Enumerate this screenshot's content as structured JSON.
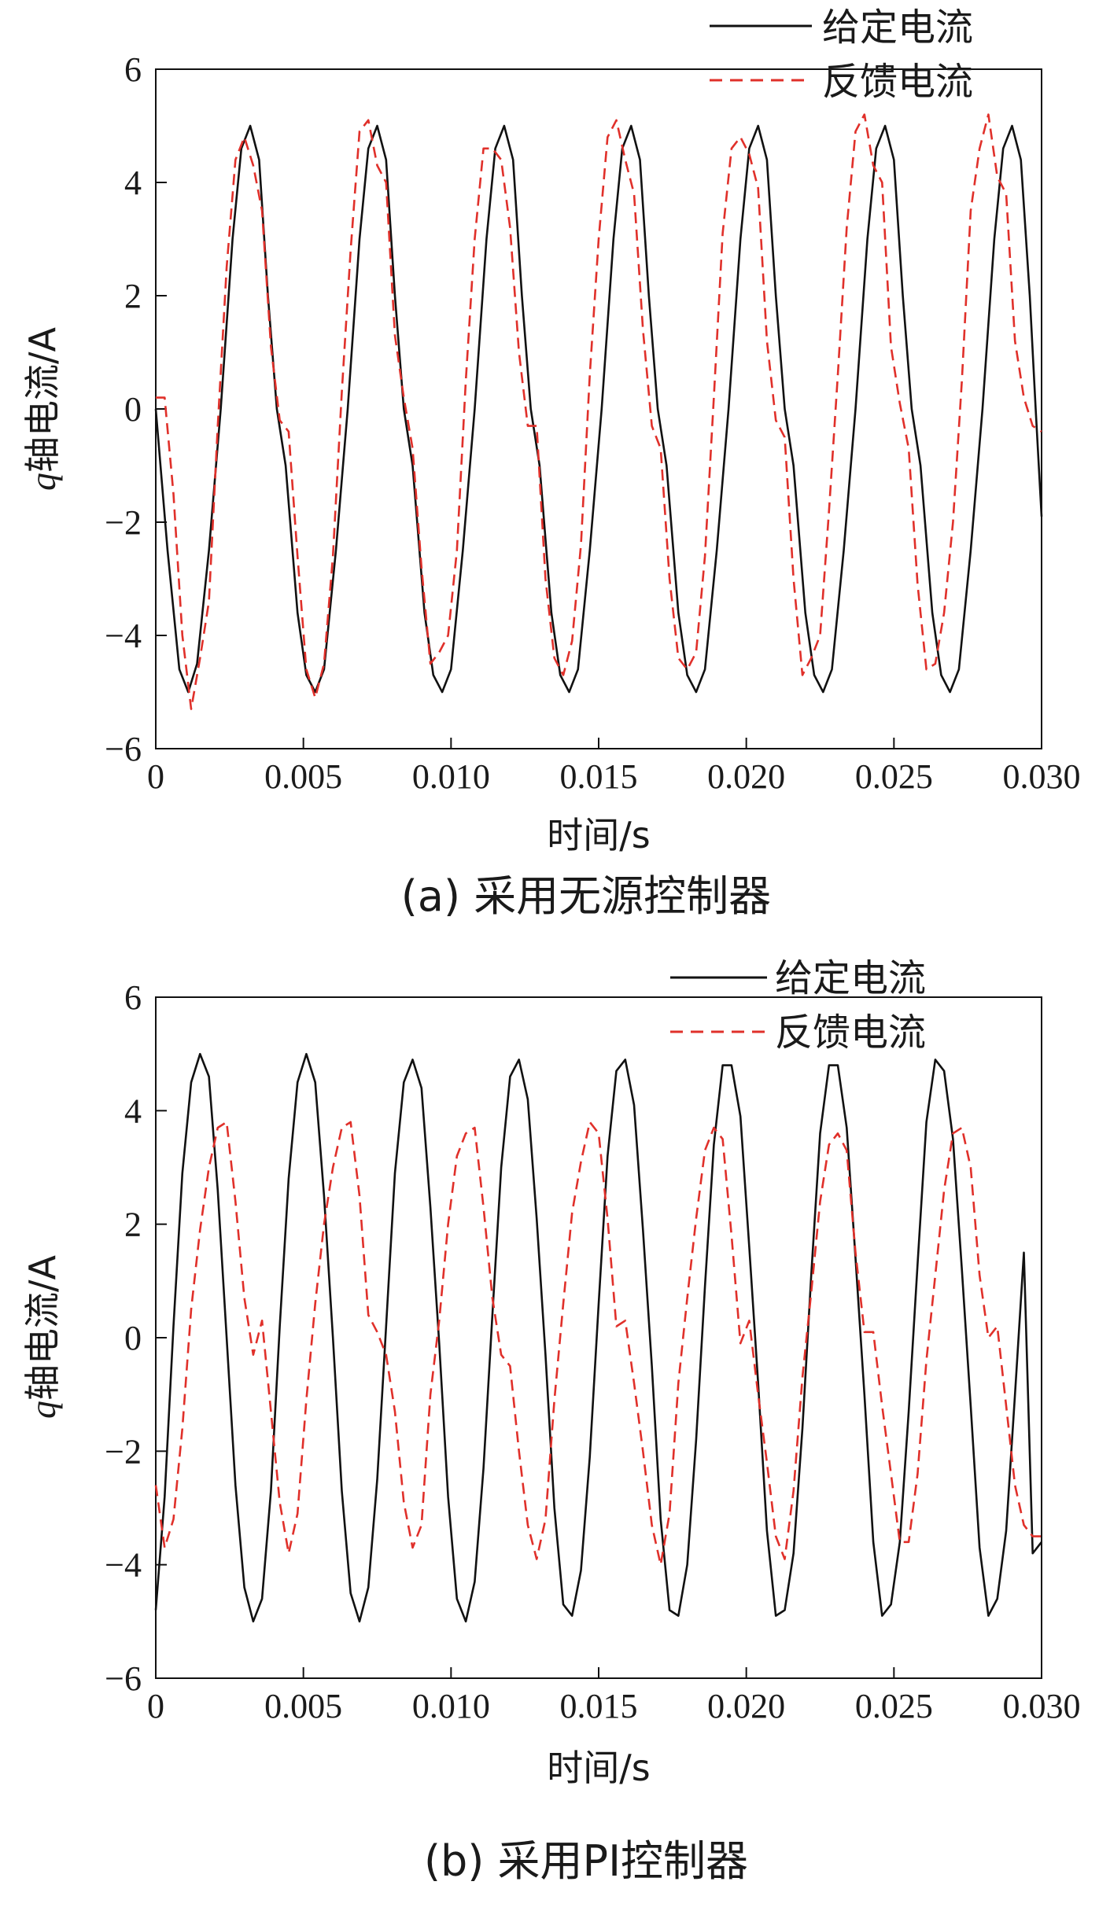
{
  "chart_data": [
    {
      "type": "line",
      "caption": "(a)  采用无源控制器",
      "xlabel": "时间/s",
      "ylabel_italic": "q",
      "ylabel_rest": "轴电流/A",
      "xlim": [
        0,
        0.03
      ],
      "ylim": [
        -6,
        6
      ],
      "xticks": [
        0,
        0.005,
        0.01,
        0.015,
        0.02,
        0.025,
        0.03
      ],
      "xtick_labels": [
        "0",
        "0.005",
        "0.010",
        "0.015",
        "0.020",
        "0.025",
        "0.030"
      ],
      "yticks": [
        6,
        4,
        2,
        0,
        -2,
        -4,
        -6
      ],
      "ytick_labels": [
        "6",
        "4",
        "2",
        "0",
        "−2",
        "−4",
        "−6"
      ],
      "legend_position": "top-right",
      "legend": [
        "给定电流",
        "反馈电流"
      ],
      "series": [
        {
          "name": "给定电流",
          "style": "solid",
          "color": "#111111",
          "x": [
            0,
            0.0004,
            0.0008,
            0.0011,
            0.0014,
            0.0018,
            0.0022,
            0.0026,
            0.0029,
            0.0032,
            0.0035,
            0.0038,
            0.0041,
            0.0044,
            0.0048,
            0.0051,
            0.0054,
            0.0057,
            0.0061,
            0.0065,
            0.0069,
            0.0072,
            0.0075,
            0.0078,
            0.0081,
            0.0084,
            0.0087,
            0.0091,
            0.0094,
            0.0097,
            0.01,
            0.0104,
            0.0108,
            0.0112,
            0.0115,
            0.0118,
            0.0121,
            0.0124,
            0.0127,
            0.013,
            0.0134,
            0.0137,
            0.014,
            0.0143,
            0.0147,
            0.0151,
            0.0155,
            0.0158,
            0.0161,
            0.0164,
            0.0167,
            0.017,
            0.0173,
            0.0177,
            0.018,
            0.0183,
            0.0186,
            0.019,
            0.0194,
            0.0198,
            0.0201,
            0.0204,
            0.0207,
            0.021,
            0.0213,
            0.0216,
            0.022,
            0.0223,
            0.0226,
            0.0229,
            0.0233,
            0.0237,
            0.0241,
            0.0244,
            0.0247,
            0.025,
            0.0253,
            0.0256,
            0.0259,
            0.0263,
            0.0266,
            0.0269,
            0.0272,
            0.0276,
            0.028,
            0.0284,
            0.0287,
            0.029,
            0.0293,
            0.0296,
            0.0298,
            0.03
          ],
          "y": [
            0,
            -2.5,
            -4.6,
            -5.0,
            -4.5,
            -2.5,
            0,
            3.0,
            4.6,
            5.0,
            4.4,
            2.0,
            0,
            -1.0,
            -3.6,
            -4.7,
            -5.0,
            -4.6,
            -2.5,
            0,
            3.0,
            4.6,
            5.0,
            4.4,
            2.0,
            0,
            -1.0,
            -3.6,
            -4.7,
            -5.0,
            -4.6,
            -2.5,
            0,
            3.0,
            4.6,
            5.0,
            4.4,
            2.0,
            0,
            -1.0,
            -3.6,
            -4.7,
            -5.0,
            -4.6,
            -2.5,
            0,
            3.0,
            4.6,
            5.0,
            4.4,
            2.0,
            0,
            -1.0,
            -3.6,
            -4.7,
            -5.0,
            -4.6,
            -2.5,
            0,
            3.0,
            4.6,
            5.0,
            4.4,
            2.0,
            0,
            -1.0,
            -3.6,
            -4.7,
            -5.0,
            -4.6,
            -2.5,
            0,
            3.0,
            4.6,
            5.0,
            4.4,
            2.0,
            0,
            -1.0,
            -3.6,
            -4.7,
            -5.0,
            -4.6,
            -2.5,
            0,
            3.0,
            4.6,
            5.0,
            4.4,
            2.0,
            0,
            -1.9
          ]
        },
        {
          "name": "反馈电流",
          "style": "dashed",
          "color": "#e0302a",
          "x": [
            0,
            0.0003,
            0.0006,
            0.0009,
            0.0012,
            0.0015,
            0.0018,
            0.0021,
            0.0024,
            0.0027,
            0.003,
            0.0033,
            0.0036,
            0.0039,
            0.0042,
            0.0045,
            0.0048,
            0.0051,
            0.0054,
            0.0057,
            0.006,
            0.0063,
            0.0066,
            0.0069,
            0.0072,
            0.0075,
            0.0078,
            0.0081,
            0.0084,
            0.0087,
            0.009,
            0.0093,
            0.0096,
            0.0099,
            0.0102,
            0.0105,
            0.0108,
            0.0111,
            0.0114,
            0.0117,
            0.012,
            0.0123,
            0.0126,
            0.0129,
            0.0132,
            0.0135,
            0.0138,
            0.0141,
            0.0144,
            0.0147,
            0.015,
            0.0153,
            0.0156,
            0.0159,
            0.0162,
            0.0165,
            0.0168,
            0.0171,
            0.0174,
            0.0177,
            0.018,
            0.0183,
            0.0186,
            0.0189,
            0.0192,
            0.0195,
            0.0198,
            0.0201,
            0.0204,
            0.0207,
            0.021,
            0.0213,
            0.0216,
            0.0219,
            0.0222,
            0.0225,
            0.0228,
            0.0231,
            0.0234,
            0.0237,
            0.024,
            0.0243,
            0.0246,
            0.0249,
            0.0252,
            0.0255,
            0.0258,
            0.0261,
            0.0264,
            0.0267,
            0.027,
            0.0273,
            0.0276,
            0.0279,
            0.0282,
            0.0285,
            0.0288,
            0.0291,
            0.0294,
            0.0297,
            0.03
          ],
          "y": [
            0.2,
            0.2,
            -1.5,
            -4.0,
            -5.3,
            -4.4,
            -3.4,
            -0.3,
            2.5,
            4.4,
            4.8,
            4.3,
            3.5,
            1.1,
            -0.2,
            -0.4,
            -2.6,
            -4.6,
            -5.1,
            -4.5,
            -2.6,
            0.3,
            2.8,
            4.9,
            5.1,
            4.3,
            4.0,
            1.3,
            0.2,
            -0.7,
            -2.8,
            -4.5,
            -4.3,
            -4.0,
            -2.5,
            0.5,
            3.0,
            4.6,
            4.6,
            4.4,
            3.2,
            1.0,
            -0.3,
            -0.3,
            -3.0,
            -4.4,
            -4.7,
            -4.1,
            -2.4,
            0.6,
            3.0,
            4.8,
            5.1,
            4.4,
            3.8,
            1.4,
            -0.3,
            -0.7,
            -3.0,
            -4.4,
            -4.6,
            -4.3,
            -2.6,
            0.2,
            3.1,
            4.6,
            4.8,
            4.5,
            3.9,
            1.2,
            -0.2,
            -0.5,
            -3.0,
            -4.7,
            -4.4,
            -4.0,
            -1.8,
            0.6,
            3.2,
            4.9,
            5.2,
            4.3,
            4.0,
            1.1,
            0.1,
            -0.7,
            -3.1,
            -4.6,
            -4.5,
            -3.6,
            -2.0,
            0.5,
            3.5,
            4.6,
            5.2,
            4.1,
            3.8,
            1.2,
            0.2,
            -0.3,
            -0.4
          ]
        }
      ]
    },
    {
      "type": "line",
      "caption": "(b)  采用PI控制器",
      "xlabel": "时间/s",
      "ylabel_italic": "q",
      "ylabel_rest": "轴电流/A",
      "xlim": [
        0,
        0.03
      ],
      "ylim": [
        -6,
        6
      ],
      "xticks": [
        0,
        0.005,
        0.01,
        0.015,
        0.02,
        0.025,
        0.03
      ],
      "xtick_labels": [
        "0",
        "0.005",
        "0.010",
        "0.015",
        "0.020",
        "0.025",
        "0.030"
      ],
      "yticks": [
        6,
        4,
        2,
        0,
        -2,
        -4,
        -6
      ],
      "ytick_labels": [
        "6",
        "4",
        "2",
        "0",
        "−2",
        "−4",
        "−6"
      ],
      "legend_position": "top-right",
      "legend": [
        "给定电流",
        "反馈电流"
      ],
      "series": [
        {
          "name": "给定电流",
          "style": "solid",
          "color": "#111111",
          "x": [
            0,
            0.0003,
            0.0006,
            0.0009,
            0.0012,
            0.0015,
            0.0018,
            0.0021,
            0.0024,
            0.0027,
            0.003,
            0.0033,
            0.0036,
            0.0039,
            0.0042,
            0.0045,
            0.0048,
            0.0051,
            0.0054,
            0.0057,
            0.006,
            0.0063,
            0.0066,
            0.0069,
            0.0072,
            0.0075,
            0.0078,
            0.0081,
            0.0084,
            0.0087,
            0.009,
            0.0093,
            0.0096,
            0.0099,
            0.0102,
            0.0105,
            0.0108,
            0.0111,
            0.0114,
            0.0117,
            0.012,
            0.0123,
            0.0126,
            0.0129,
            0.0132,
            0.0135,
            0.0138,
            0.0141,
            0.0144,
            0.0147,
            0.015,
            0.0153,
            0.0156,
            0.0159,
            0.0162,
            0.0165,
            0.0168,
            0.0171,
            0.0174,
            0.0177,
            0.018,
            0.0183,
            0.0186,
            0.0189,
            0.0192,
            0.0195,
            0.0198,
            0.0201,
            0.0204,
            0.0207,
            0.021,
            0.0213,
            0.0216,
            0.0219,
            0.0222,
            0.0225,
            0.0228,
            0.0231,
            0.0234,
            0.0237,
            0.024,
            0.0243,
            0.0246,
            0.0249,
            0.0252,
            0.0255,
            0.0258,
            0.0261,
            0.0264,
            0.0267,
            0.027,
            0.0273,
            0.0276,
            0.0279,
            0.0282,
            0.0285,
            0.0288,
            0.0291,
            0.0294,
            0.0297,
            0.03
          ],
          "y": [
            -4.8,
            -2.8,
            0.2,
            2.9,
            4.5,
            5.0,
            4.6,
            2.6,
            0.0,
            -2.6,
            -4.4,
            -5.0,
            -4.6,
            -2.7,
            0.2,
            2.8,
            4.5,
            5.0,
            4.5,
            2.5,
            0.0,
            -2.7,
            -4.5,
            -5.0,
            -4.4,
            -2.5,
            0.2,
            2.9,
            4.5,
            4.9,
            4.4,
            2.3,
            -0.1,
            -2.8,
            -4.6,
            -5.0,
            -4.3,
            -2.3,
            0.4,
            3.0,
            4.6,
            4.9,
            4.2,
            2.1,
            -0.3,
            -3.0,
            -4.7,
            -4.9,
            -4.1,
            -2.1,
            0.6,
            3.2,
            4.7,
            4.9,
            4.1,
            1.9,
            -0.5,
            -3.2,
            -4.8,
            -4.9,
            -4.0,
            -1.8,
            0.9,
            3.4,
            4.8,
            4.8,
            3.9,
            1.6,
            -0.8,
            -3.4,
            -4.9,
            -4.8,
            -3.8,
            -1.6,
            1.1,
            3.6,
            4.8,
            4.8,
            3.7,
            1.4,
            -1.0,
            -3.6,
            -4.9,
            -4.7,
            -3.6,
            -1.3,
            1.3,
            3.8,
            4.9,
            4.7,
            3.5,
            1.2,
            -1.2,
            -3.7,
            -4.9,
            -4.6,
            -3.4,
            -1.0,
            1.5,
            -3.8,
            -3.6
          ]
        },
        {
          "name": "反馈电流",
          "style": "dashed",
          "color": "#e0302a",
          "x": [
            0,
            0.0003,
            0.0006,
            0.0009,
            0.0012,
            0.0015,
            0.0018,
            0.0021,
            0.0024,
            0.0027,
            0.003,
            0.0033,
            0.0036,
            0.0039,
            0.0042,
            0.0045,
            0.0048,
            0.0051,
            0.0054,
            0.0057,
            0.006,
            0.0063,
            0.0066,
            0.0069,
            0.0072,
            0.0075,
            0.0078,
            0.0081,
            0.0084,
            0.0087,
            0.009,
            0.0093,
            0.0096,
            0.0099,
            0.0102,
            0.0105,
            0.0108,
            0.0111,
            0.0114,
            0.0117,
            0.012,
            0.0123,
            0.0126,
            0.0129,
            0.0132,
            0.0135,
            0.0138,
            0.0141,
            0.0144,
            0.0147,
            0.015,
            0.0153,
            0.0156,
            0.0159,
            0.0162,
            0.0165,
            0.0168,
            0.0171,
            0.0174,
            0.0177,
            0.018,
            0.0183,
            0.0186,
            0.0189,
            0.0192,
            0.0195,
            0.0198,
            0.0201,
            0.0204,
            0.0207,
            0.021,
            0.0213,
            0.0216,
            0.0219,
            0.0222,
            0.0225,
            0.0228,
            0.0231,
            0.0234,
            0.0237,
            0.024,
            0.0243,
            0.0246,
            0.0249,
            0.0252,
            0.0255,
            0.0258,
            0.0261,
            0.0264,
            0.0267,
            0.027,
            0.0273,
            0.0276,
            0.0279,
            0.0282,
            0.0285,
            0.0288,
            0.0291,
            0.0294,
            0.0297,
            0.03
          ],
          "y": [
            -2.6,
            -3.7,
            -3.2,
            -1.6,
            0.5,
            1.9,
            3.0,
            3.7,
            3.8,
            2.4,
            0.7,
            -0.3,
            0.3,
            -1.3,
            -2.9,
            -3.8,
            -3.1,
            -1.1,
            0.6,
            2.0,
            3.0,
            3.7,
            3.8,
            2.5,
            0.4,
            0.1,
            -0.3,
            -1.3,
            -2.9,
            -3.7,
            -3.3,
            -1.0,
            0.3,
            2.0,
            3.2,
            3.6,
            3.7,
            2.3,
            0.7,
            -0.3,
            -0.5,
            -2.0,
            -3.3,
            -3.9,
            -3.2,
            -1.1,
            0.6,
            2.2,
            3.1,
            3.8,
            3.6,
            2.1,
            0.2,
            0.3,
            -0.8,
            -2.0,
            -3.3,
            -4.0,
            -3.1,
            -0.8,
            0.7,
            2.1,
            3.3,
            3.7,
            3.5,
            1.8,
            -0.1,
            0.3,
            -1.0,
            -2.2,
            -3.5,
            -3.9,
            -2.7,
            -0.7,
            0.8,
            2.4,
            3.4,
            3.6,
            3.3,
            1.5,
            0.1,
            0.1,
            -1.2,
            -2.4,
            -3.6,
            -3.6,
            -2.4,
            -0.4,
            1.1,
            2.6,
            3.6,
            3.7,
            3.0,
            1.1,
            0.0,
            0.2,
            -1.2,
            -2.6,
            -3.3,
            -3.5,
            -3.5
          ]
        }
      ]
    }
  ]
}
